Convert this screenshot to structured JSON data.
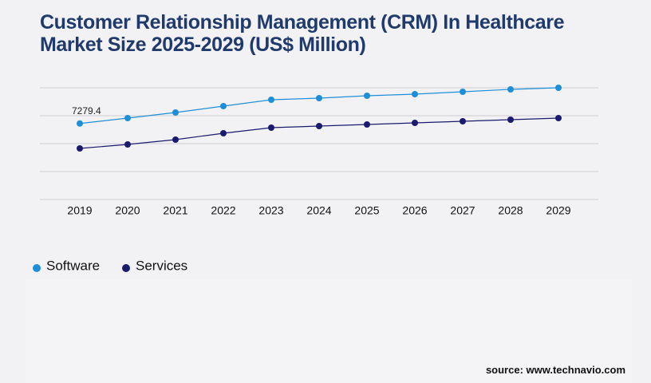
{
  "chart_data": {
    "type": "line",
    "title": "Customer Relationship Management (CRM) In Healthcare Market Size 2025-2029 (US$ Million)",
    "categories": [
      "2019",
      "2020",
      "2021",
      "2022",
      "2023",
      "2024",
      "2025",
      "2026",
      "2027",
      "2028",
      "2029"
    ],
    "series": [
      {
        "name": "Software",
        "color": "#1e8fd6",
        "values": [
          7279.4,
          7796,
          8331,
          8942,
          9553,
          9706,
          9935,
          10088,
          10318,
          10547,
          10700
        ],
        "value_labels": [
          "7279.4",
          null,
          null,
          null,
          null,
          null,
          null,
          null,
          null,
          null,
          null
        ]
      },
      {
        "name": "Services",
        "color": "#1a1a6e",
        "values": [
          4891,
          5274,
          5732,
          6344,
          6879,
          7032,
          7184,
          7337,
          7490,
          7643,
          7796
        ]
      }
    ],
    "ylim": [
      0,
      10700
    ],
    "grid": true,
    "source": "source: www.technavio.com"
  }
}
